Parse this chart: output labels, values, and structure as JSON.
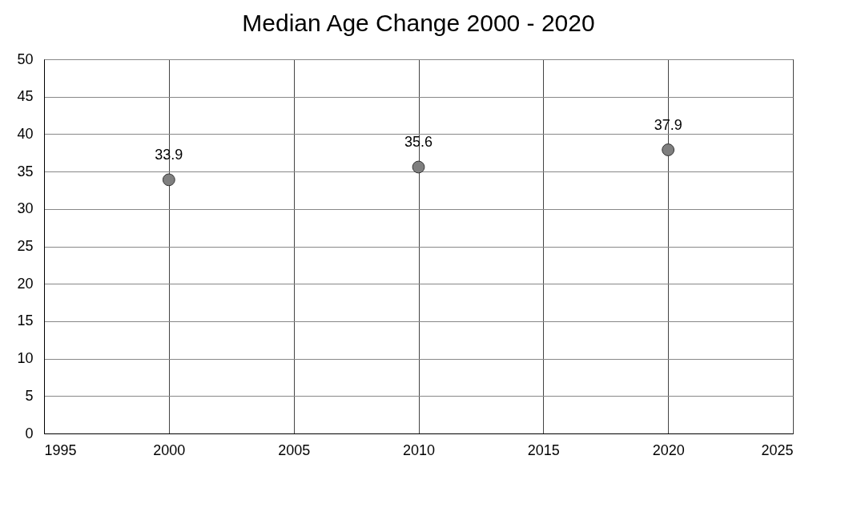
{
  "chart_data": {
    "type": "scatter",
    "title": "Median Age Change 2000 - 2020",
    "x": [
      2000,
      2010,
      2020
    ],
    "series": [
      {
        "color": "#7f7f7f",
        "values": [
          33.9,
          35.6,
          37.9
        ]
      }
    ],
    "xlim": [
      1995,
      2025
    ],
    "xticks": [
      1995,
      2000,
      2005,
      2010,
      2015,
      2020,
      2025
    ],
    "ylim": [
      0,
      50
    ],
    "yticks": [
      0,
      5,
      10,
      15,
      20,
      25,
      30,
      35,
      40,
      45,
      50
    ],
    "grid": true,
    "marker": "circle",
    "data_labels": true
  }
}
